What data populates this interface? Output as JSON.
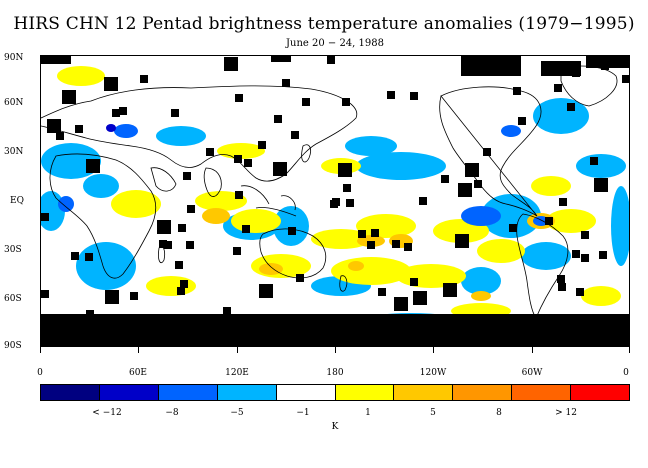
{
  "title": "HIRS CHN 12 Pentad brightness temperature anomalies (1979−1995)",
  "subtitle": "June 20 − 24, 1988",
  "y_labels": [
    "90N",
    "60N",
    "30N",
    "EQ",
    "30S",
    "60S",
    "90S"
  ],
  "x_labels": [
    "0",
    "60E",
    "120E",
    "180",
    "120W",
    "60W",
    "0"
  ],
  "colorbar": {
    "colors": [
      "#000080",
      "#0000c8",
      "#0064ff",
      "#00b4ff",
      "#ffffff",
      "#ffff00",
      "#ffc800",
      "#ff9600",
      "#ff6400",
      "#ff0000"
    ],
    "labels": [
      "< −12",
      "−8",
      "−5",
      "−1",
      "1",
      "5",
      "8",
      "> 12"
    ],
    "unit": "K"
  },
  "legend_colors": {
    "land": "#000000",
    "coast": "#000000"
  }
}
